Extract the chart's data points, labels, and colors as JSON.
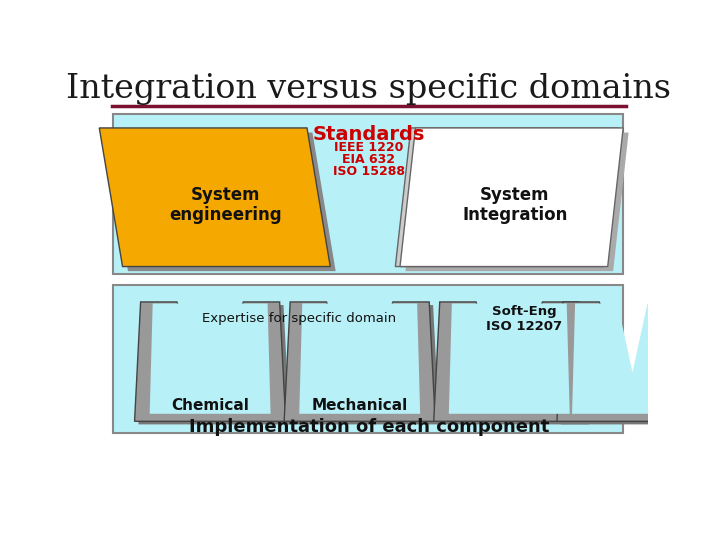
{
  "title": "Integration versus specific domains",
  "title_color": "#1a1a1a",
  "title_fontsize": 24,
  "title_font": "serif",
  "underline_color": "#7b1030",
  "bg_color": "#ffffff",
  "top_box_color": "#b8f0f8",
  "bottom_box_color": "#b8f0f8",
  "standards_title": "Standards",
  "standards_title_color": "#cc0000",
  "standards_items": [
    "IEEE 1220",
    "EIA 632",
    "ISO 15288"
  ],
  "standards_items_color": "#cc0000",
  "left_para_color": "#f5a800",
  "left_para_text": "System\nengineering",
  "right_para_color": "#ffffff",
  "right_para_text": "System\nIntegration",
  "expertise_label": "Expertise for specific domain",
  "soft_eng_label": "Soft-Eng\nISO 12207",
  "chemical_label": "Chemical",
  "mechanical_label": "Mechanical",
  "bottom_label": "Implementation of each component",
  "w_color": "#999999",
  "w_shadow_color": "#777777",
  "box_edge_color": "#888888"
}
